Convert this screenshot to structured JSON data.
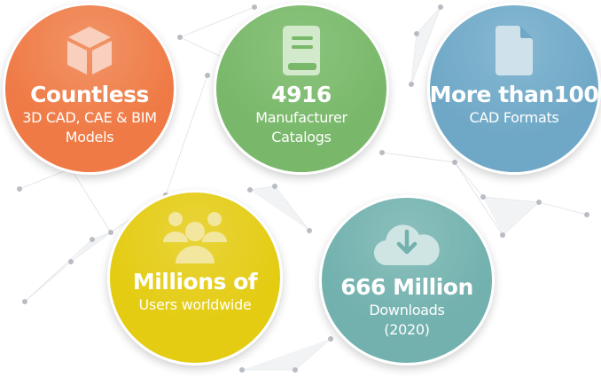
{
  "colors": {
    "orange": "#ef7a45",
    "green": "#79b86a",
    "blue": "#6fa8c6",
    "yellow": "#e4cc12",
    "teal": "#72b1ae",
    "network": "#c9ccd2"
  },
  "stats": [
    {
      "icon": "cube-icon",
      "title": "Countless",
      "lines": [
        "3D CAD, CAE & BIM",
        "Models"
      ]
    },
    {
      "icon": "book-icon",
      "title": "4916",
      "lines": [
        "Manufacturer",
        "Catalogs"
      ]
    },
    {
      "icon": "file-icon",
      "title": "More than100",
      "lines": [
        "CAD Formats"
      ]
    },
    {
      "icon": "users-icon",
      "title": "Millions of",
      "lines": [
        "Users worldwide"
      ]
    },
    {
      "icon": "cloud-download-icon",
      "title": "666 Million",
      "lines": [
        "Downloads",
        "(2020)"
      ]
    }
  ]
}
